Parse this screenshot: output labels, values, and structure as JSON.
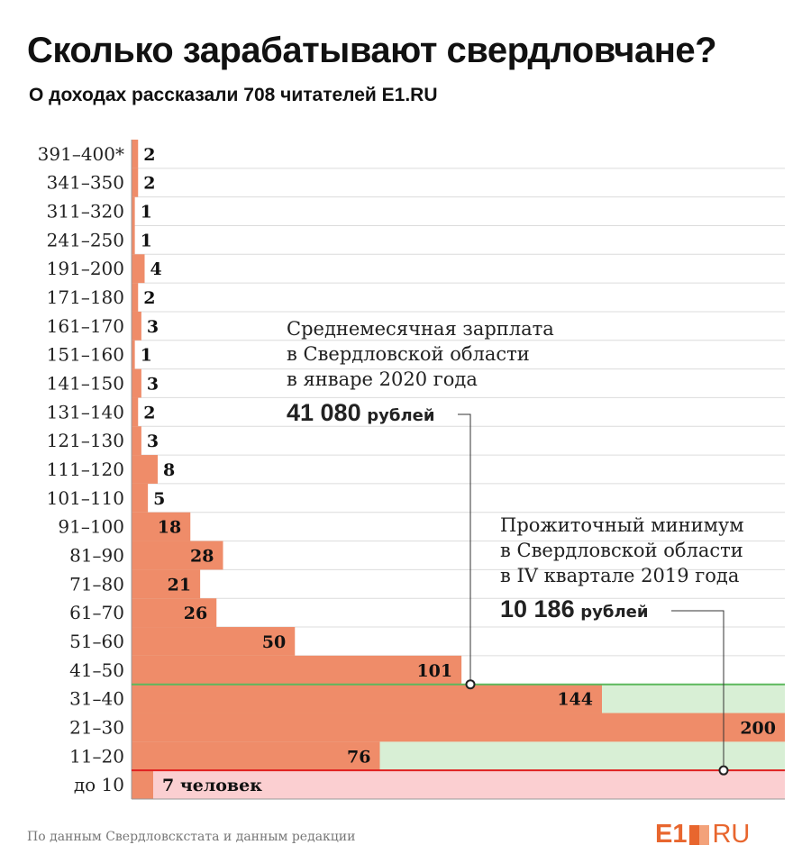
{
  "title": "Сколько зарабатывают свердловчане?",
  "subtitle": "О доходах рассказали 708 читателей  E1.RU",
  "chart_data": {
    "type": "bar",
    "orientation": "horizontal",
    "categories": [
      "391–400*",
      "341–350",
      "311–320",
      "241–250",
      "191–200",
      "171–180",
      "161–170",
      "151–160",
      "141–150",
      "131–140",
      "121–130",
      "111–120",
      "101–110",
      "91–100",
      "81–90",
      "71–80",
      "61–70",
      "51–60",
      "41–50",
      "31–40",
      "21–30",
      "11–20",
      "до 10"
    ],
    "values": [
      2,
      2,
      1,
      1,
      4,
      2,
      3,
      1,
      3,
      2,
      3,
      8,
      5,
      18,
      28,
      21,
      26,
      50,
      101,
      144,
      200,
      76,
      7
    ],
    "last_label_suffix": " человек",
    "xlim": [
      0,
      200
    ],
    "grid": true,
    "colors": {
      "bar": "#ef8c69",
      "above_min": "#d8efd5",
      "below_min": "#fbcfd1",
      "avg_line": "#5cb85c",
      "min_line": "#e02020"
    }
  },
  "annotations": {
    "avg": {
      "line1": "Среднемесячная зарплата",
      "line2": "в Свердловской области",
      "line3": "в январе 2020 года",
      "value": "41 080",
      "unit": "рублей"
    },
    "min": {
      "line1": "Прожиточный минимум",
      "line2": "в Свердловской области",
      "line3": "в IV квартале 2019 года",
      "value": "10 186",
      "unit": "рублей"
    }
  },
  "source": "По данным Свердловскстата и данным редакции",
  "logo": {
    "left": "E1",
    "right": "RU"
  }
}
